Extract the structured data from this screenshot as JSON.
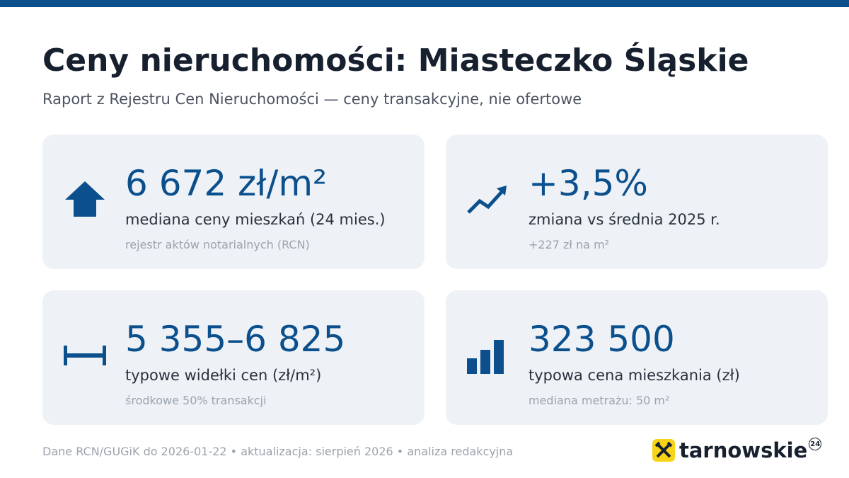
{
  "header": {
    "title": "Ceny nieruchomości: Miasteczko Śląskie",
    "subtitle": "Raport z Rejestru Cen Nieruchomości — ceny transakcyjne, nie ofertowe"
  },
  "cards": [
    {
      "value": "6 672 zł/m²",
      "label": "mediana ceny mieszkań (24 mies.)",
      "note": "rejestr aktów notarialnych (RCN)"
    },
    {
      "value": "+3,5%",
      "label": "zmiana vs średnia 2025 r.",
      "note": "+227 zł na m²"
    },
    {
      "value": "5 355–6 825",
      "label": "typowe widełki cen (zł/m²)",
      "note": "środkowe 50% transakcji"
    },
    {
      "value": "323 500",
      "label": "typowa cena mieszkania (zł)",
      "note": "mediana metrażu: 50 m²"
    }
  ],
  "footer": {
    "source": "Dane RCN/GUGiK do 2026-01-22 • aktualizacja: sierpień 2026 • analiza redakcyjna",
    "logo": "tarnowskie",
    "logo_badge": "24"
  }
}
